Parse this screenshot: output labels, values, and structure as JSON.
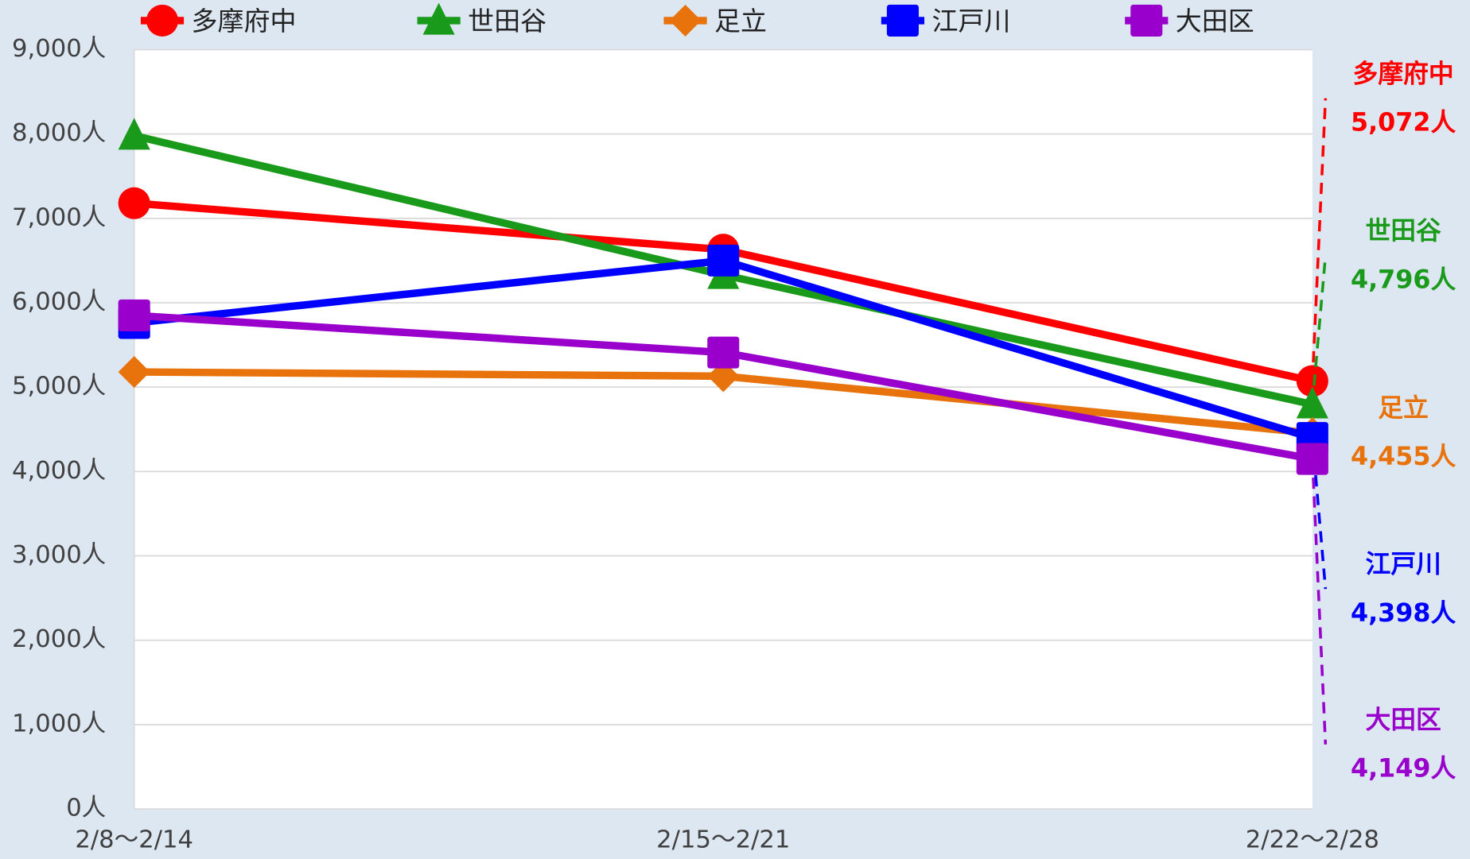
{
  "chart_data": {
    "type": "line",
    "categories": [
      "2/8～2/14",
      "2/15～2/21",
      "2/22～2/28"
    ],
    "ylim": [
      0,
      9000
    ],
    "yticks": [
      {
        "value": 0,
        "label": "0人"
      },
      {
        "value": 1000,
        "label": "1,000人"
      },
      {
        "value": 2000,
        "label": "2,000人"
      },
      {
        "value": 3000,
        "label": "3,000人"
      },
      {
        "value": 4000,
        "label": "4,000人"
      },
      {
        "value": 5000,
        "label": "5,000人"
      },
      {
        "value": 6000,
        "label": "6,000人"
      },
      {
        "value": 7000,
        "label": "7,000人"
      },
      {
        "value": 8000,
        "label": "8,000人"
      },
      {
        "value": 9000,
        "label": "9,000人"
      }
    ],
    "grid": true,
    "legend": "top",
    "series": [
      {
        "name": "多摩府中",
        "color": "#ff0000",
        "marker": "circle",
        "values": [
          7180,
          6630,
          5072
        ],
        "value_labels": [
          null,
          null,
          "5,072人"
        ]
      },
      {
        "name": "世田谷",
        "color": "#1a9a1a",
        "marker": "triangle",
        "values": [
          7980,
          6330,
          4796
        ],
        "value_labels": [
          null,
          null,
          "4,796人"
        ]
      },
      {
        "name": "足立",
        "color": "#e8720c",
        "marker": "diamond",
        "values": [
          5180,
          5130,
          4455
        ],
        "value_labels": [
          null,
          null,
          "4,455人"
        ]
      },
      {
        "name": "江戸川",
        "color": "#0000ff",
        "marker": "square",
        "values": [
          5760,
          6500,
          4398
        ],
        "value_labels": [
          null,
          null,
          "4,398人"
        ]
      },
      {
        "name": "大田区",
        "color": "#9900cc",
        "marker": "square",
        "values": [
          5850,
          5410,
          4149
        ],
        "value_labels": [
          null,
          null,
          "4,149人"
        ]
      }
    ]
  }
}
